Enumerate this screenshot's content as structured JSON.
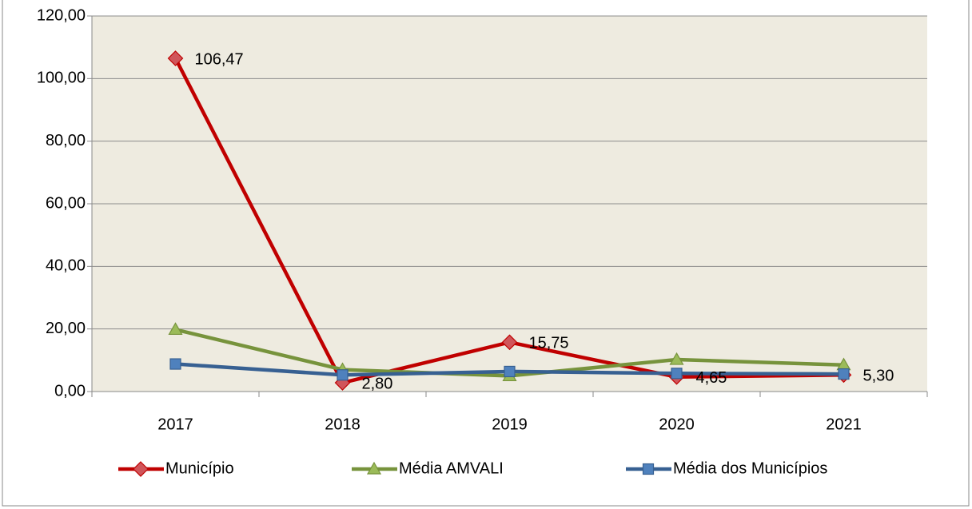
{
  "chart_data": {
    "type": "line",
    "categories": [
      "2017",
      "2018",
      "2019",
      "2020",
      "2021"
    ],
    "series": [
      {
        "name": "Município",
        "color": "#c00000",
        "marker": "diamond",
        "marker_color": "#d0555a",
        "values": [
          106.47,
          2.8,
          15.75,
          4.65,
          5.3
        ],
        "value_labels": [
          "106,47",
          "2,80",
          "15,75",
          "4,65",
          "5,30"
        ]
      },
      {
        "name": "Média AMVALI",
        "color": "#77933c",
        "marker": "triangle",
        "marker_color": "#9bbb59",
        "values": [
          19.8,
          7.0,
          5.0,
          10.2,
          8.5
        ]
      },
      {
        "name": "Média dos Municípios",
        "color": "#376092",
        "marker": "square",
        "marker_color": "#4f81bd",
        "values": [
          8.8,
          5.3,
          6.4,
          5.8,
          5.6
        ]
      }
    ],
    "ylim": [
      0,
      120
    ],
    "yticks": [
      {
        "value": 0,
        "label": "0,00"
      },
      {
        "value": 20,
        "label": "20,00"
      },
      {
        "value": 40,
        "label": "40,00"
      },
      {
        "value": 60,
        "label": "60,00"
      },
      {
        "value": 80,
        "label": "80,00"
      },
      {
        "value": 100,
        "label": "100,00"
      },
      {
        "value": 120,
        "label": "120,00"
      }
    ],
    "grid": true,
    "legend": "bottom"
  }
}
